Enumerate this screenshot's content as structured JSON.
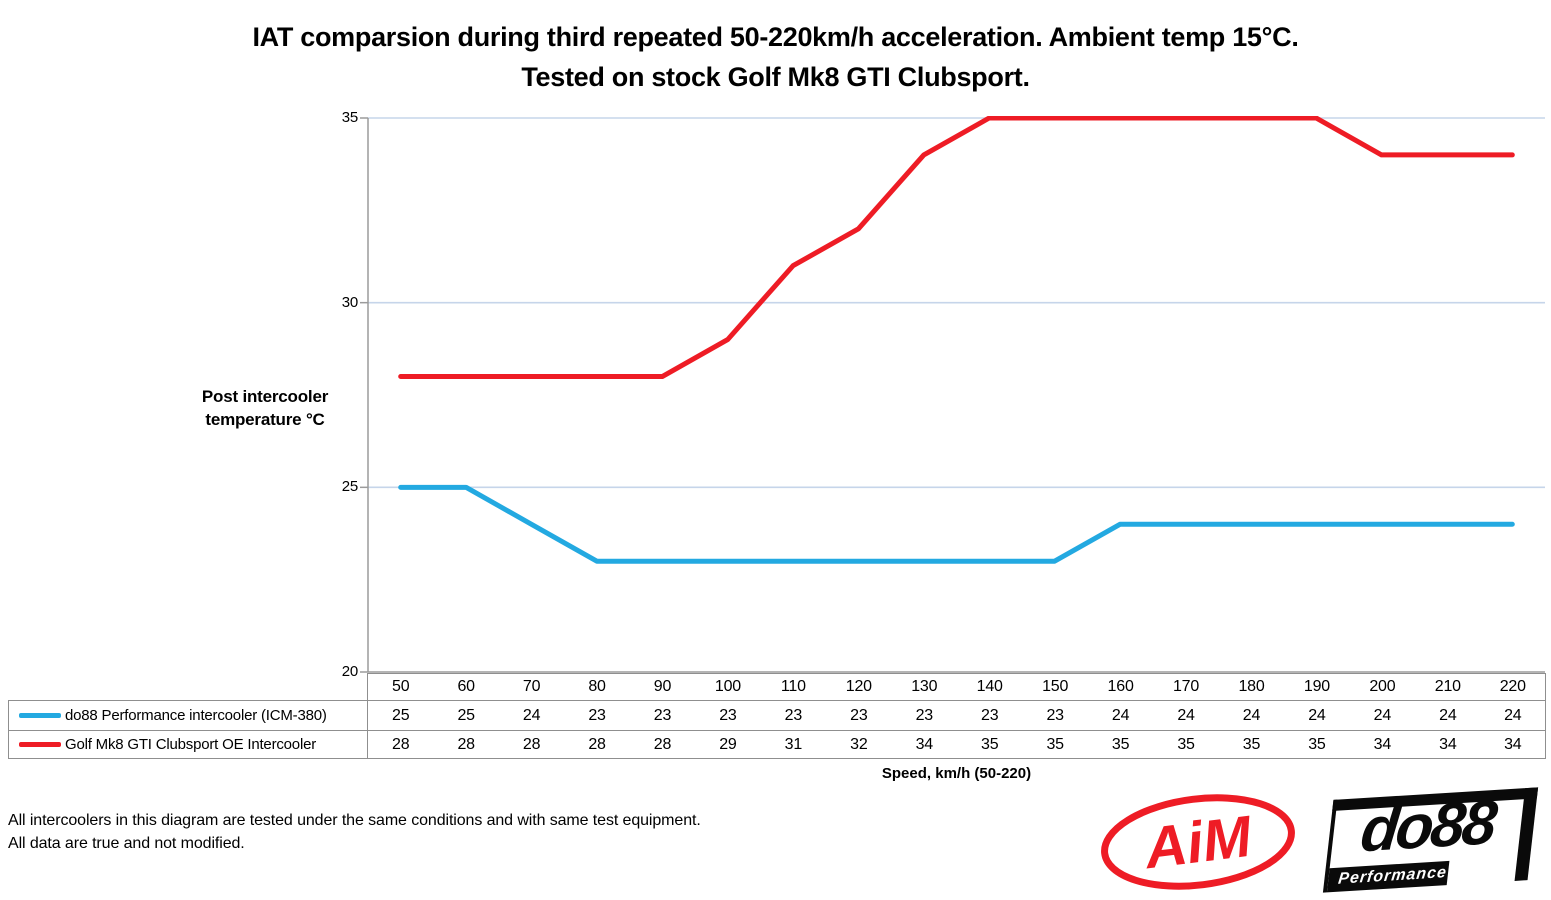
{
  "title": {
    "line1": "IAT comparsion during third repeated 50-220km/h acceleration. Ambient temp 15°C.",
    "line2": "Tested on stock Golf Mk8 GTI Clubsport."
  },
  "chart_data": {
    "type": "line",
    "title": "IAT comparsion during third repeated 50-220km/h acceleration. Ambient temp 15°C. Tested on stock Golf Mk8 GTI Clubsport.",
    "ylabel_lines": [
      "Post intercooler",
      "temperature °C"
    ],
    "xlabel": "Speed, km/h (50-220)",
    "yticks": [
      35,
      30,
      25,
      20
    ],
    "ylim": [
      20,
      35
    ],
    "grid": "horizontal",
    "legend_position": "table-left",
    "categories": [
      50,
      60,
      70,
      80,
      90,
      100,
      110,
      120,
      130,
      140,
      150,
      160,
      170,
      180,
      190,
      200,
      210,
      220
    ],
    "series": [
      {
        "name": "do88 Performance intercooler (ICM-380)",
        "color": "#23a9e1",
        "values": [
          25,
          25,
          24,
          23,
          23,
          23,
          23,
          23,
          23,
          23,
          23,
          24,
          24,
          24,
          24,
          24,
          24,
          24
        ]
      },
      {
        "name": "Golf Mk8 GTI Clubsport OE Intercooler",
        "color": "#ee1c25",
        "values": [
          28,
          28,
          28,
          28,
          28,
          29,
          31,
          32,
          34,
          35,
          35,
          35,
          35,
          35,
          35,
          34,
          34,
          34
        ]
      }
    ]
  },
  "footer": {
    "line1": "All intercoolers in this diagram are tested under the same conditions and with same test equipment.",
    "line2": "All data are true and not modified."
  },
  "logos": {
    "aim_text": "AiM",
    "do88_text": "do88",
    "do88_sub": "Performance"
  },
  "colors": {
    "gridline": "#c6d5ea",
    "axis": "#9b9b9b",
    "table_border": "#8f8f8f",
    "aim_red": "#ee1c25"
  }
}
